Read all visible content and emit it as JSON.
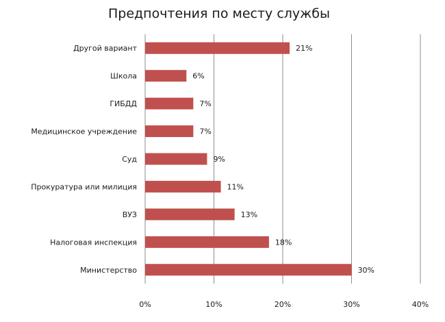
{
  "chart_data": {
    "type": "bar",
    "orientation": "horizontal",
    "title": "Предпочтения по месту службы",
    "xlabel": "",
    "ylabel": "",
    "categories": [
      "Другой вариант",
      "Школа",
      "ГИБДД",
      "Медицинское учреждение",
      "Суд",
      "Прокуратура или милиция",
      "ВУЗ",
      "Налоговая инспекция",
      "Министерство"
    ],
    "values": [
      21,
      6,
      7,
      7,
      9,
      11,
      13,
      18,
      30
    ],
    "value_labels": [
      "21%",
      "6%",
      "7%",
      "7%",
      "9%",
      "11%",
      "13%",
      "18%",
      "30%"
    ],
    "xlim": [
      0,
      40
    ],
    "x_ticks": [
      0,
      10,
      20,
      30,
      40
    ],
    "x_tick_labels": [
      "0%",
      "10%",
      "20%",
      "30%",
      "40%"
    ],
    "grid": "vertical",
    "legend": "none",
    "bar_color": "#c0504d",
    "grid_color": "#8c8c8c"
  }
}
